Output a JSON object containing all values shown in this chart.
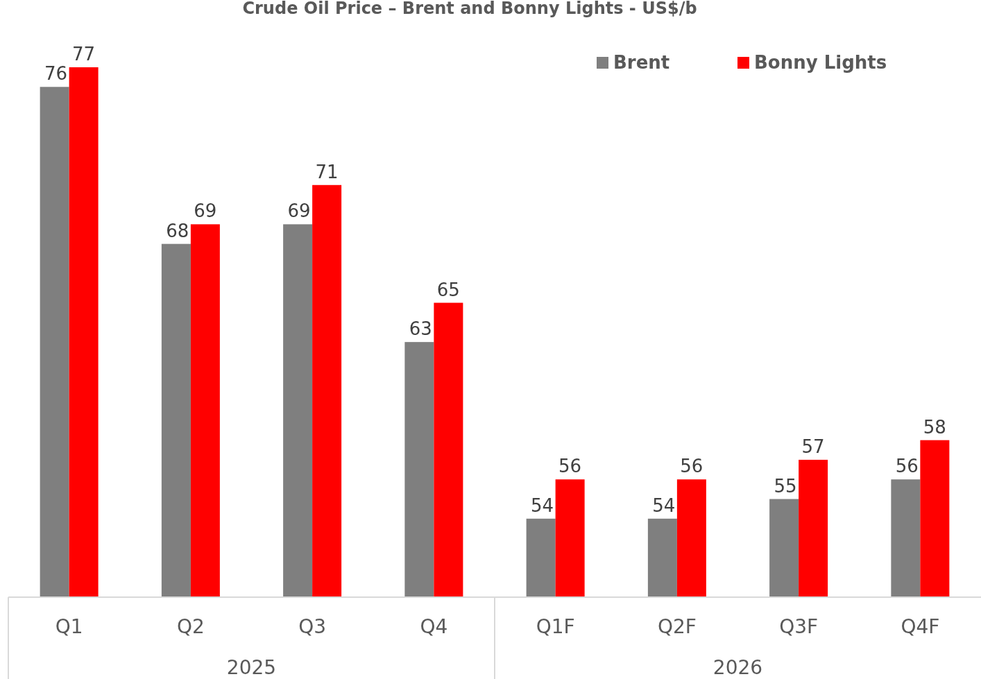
{
  "chart_data": {
    "type": "bar",
    "title": "Crude Oil Price – Brent and Bonny Lights - US$/b",
    "categories": [
      "Q1",
      "Q2",
      "Q3",
      "Q4",
      "Q1F",
      "Q2F",
      "Q3F",
      "Q4F"
    ],
    "series": [
      {
        "name": "Brent",
        "color": "#7f7f7f",
        "values": [
          76,
          68,
          69,
          63,
          54,
          54,
          55,
          56
        ]
      },
      {
        "name": "Bonny Lights",
        "color": "#ff0000",
        "values": [
          77,
          69,
          71,
          65,
          56,
          56,
          57,
          58
        ]
      }
    ],
    "annotations": [
      "2025",
      "2026"
    ],
    "ylim": [
      50,
      77
    ],
    "data_labels": true,
    "legend": "top right"
  }
}
